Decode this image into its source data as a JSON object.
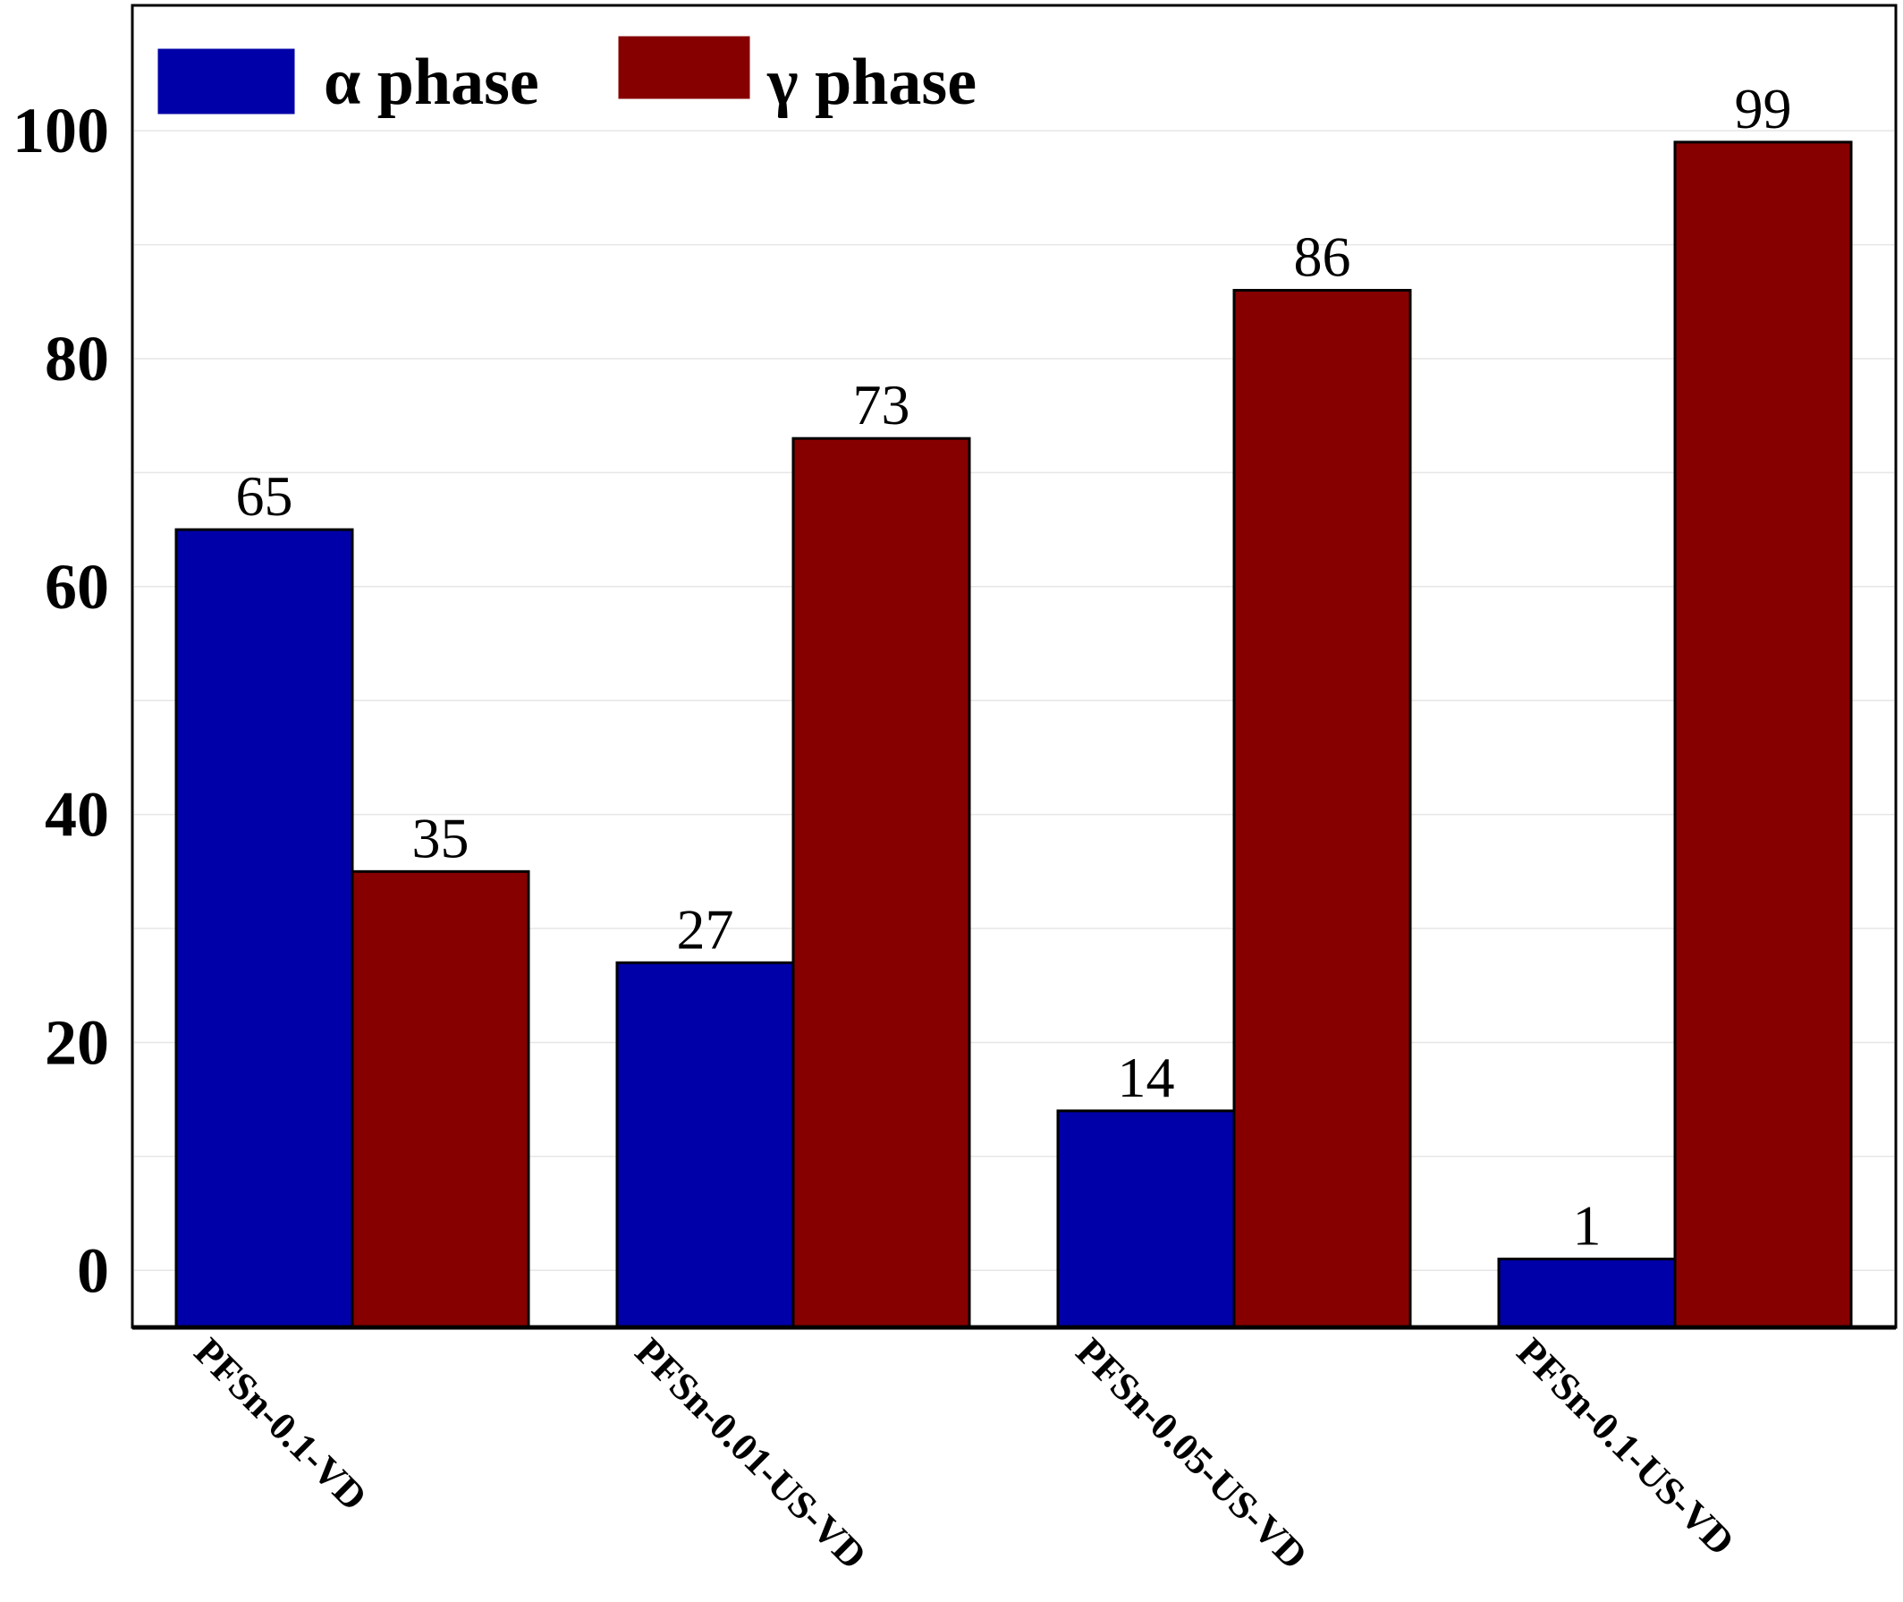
{
  "chart_data": {
    "type": "bar",
    "categories": [
      "PFSn-0.1-VD",
      "PFSn-0.01-US-VD",
      "PFSn-0.05-US-VD",
      "PFSn-0.1-US-VD"
    ],
    "series": [
      {
        "name": "α phase",
        "values": [
          65,
          27,
          14,
          1
        ],
        "color": "#0000a8"
      },
      {
        "name": "γ phase",
        "values": [
          35,
          73,
          86,
          99
        ],
        "color": "#870000"
      }
    ],
    "yticks": [
      0,
      20,
      40,
      60,
      80,
      100
    ],
    "ylim": [
      -5,
      111
    ],
    "grid": true,
    "legend_position": "top-left",
    "xlabel": "",
    "ylabel": "",
    "title": ""
  }
}
